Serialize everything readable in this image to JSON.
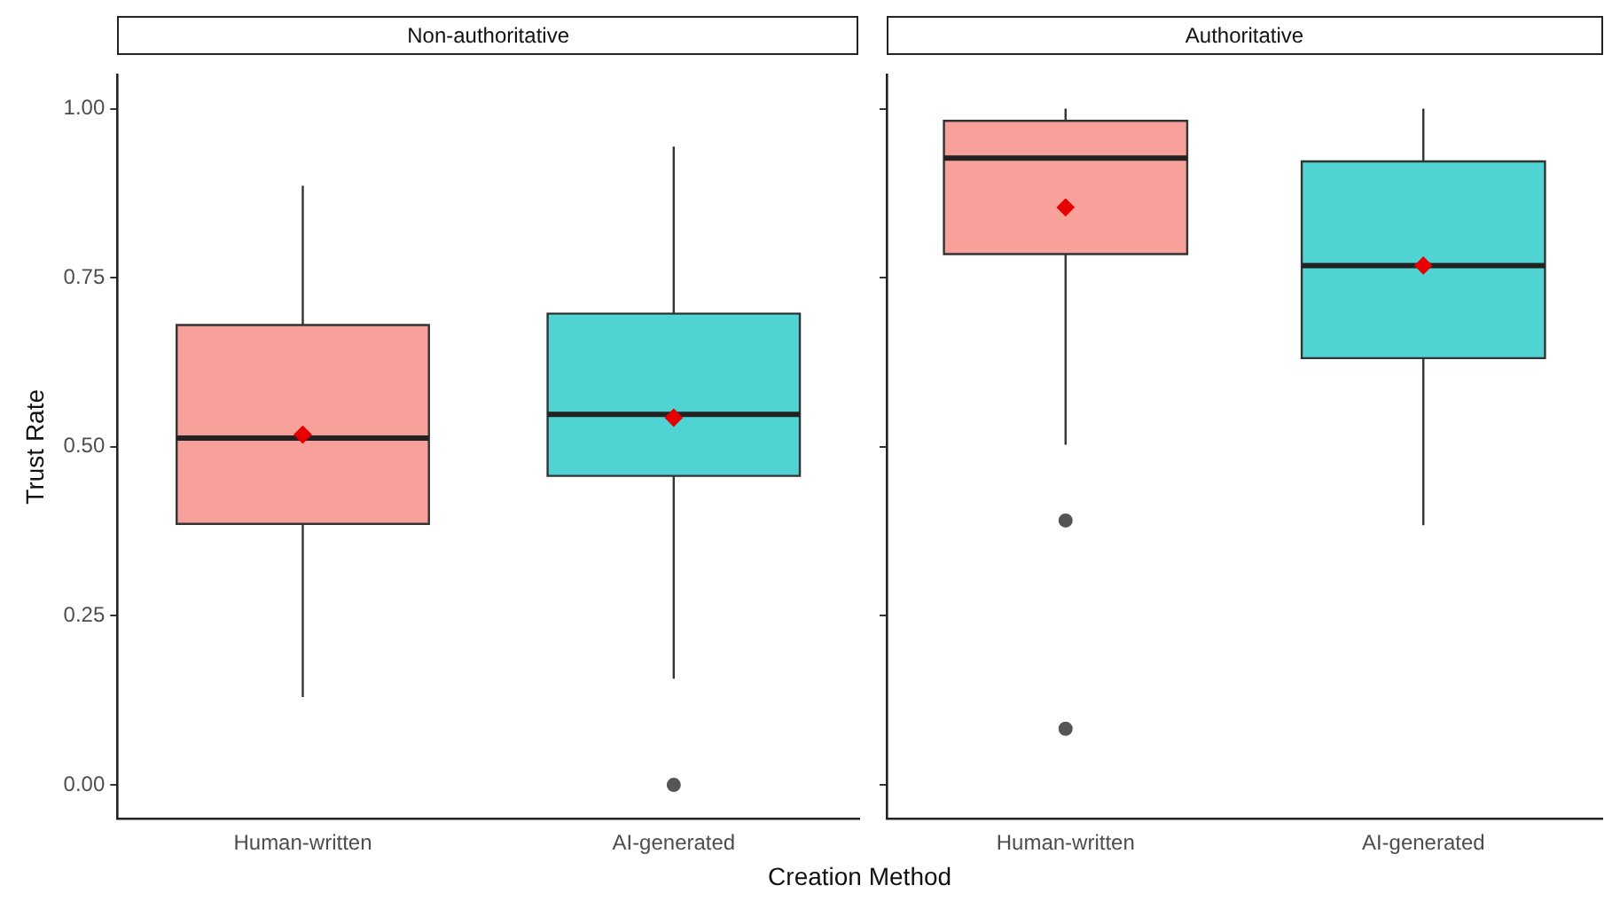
{
  "chart_data": [
    {
      "type": "box",
      "title": "Non-authoritative",
      "xlabel": "Creation Method",
      "ylabel": "Trust Rate",
      "categories": [
        "Human-written",
        "AI-generated"
      ],
      "colors": [
        "#f8a09a",
        "#4fd3d3"
      ],
      "boxes": [
        {
          "low": 0.13,
          "q1": 0.386,
          "median": 0.513,
          "q3": 0.68,
          "high": 0.886,
          "mean": 0.518
        },
        {
          "low": 0.157,
          "q1": 0.457,
          "median": 0.548,
          "q3": 0.697,
          "high": 0.944,
          "mean": 0.543,
          "outliers": [
            0
          ]
        }
      ],
      "ylim": [
        -0.05,
        1.05
      ],
      "yticks": [
        {
          "value": 0,
          "label": "0.00"
        },
        {
          "value": 0.25,
          "label": "0.25"
        },
        {
          "value": 0.5,
          "label": "0.50"
        },
        {
          "value": 0.75,
          "label": "0.75"
        },
        {
          "value": 1,
          "label": "1.00"
        }
      ],
      "grid": false,
      "legend": false
    },
    {
      "type": "box",
      "title": "Authoritative",
      "categories": [
        "Human-written",
        "AI-generated"
      ],
      "colors": [
        "#f8a09a",
        "#4fd3d3"
      ],
      "boxes": [
        {
          "low": 0.503,
          "q1": 0.785,
          "median": 0.927,
          "q3": 0.982,
          "high": 1.0,
          "mean": 0.854,
          "outliers": [
            0.391,
            0.083
          ]
        },
        {
          "low": 0.384,
          "q1": 0.631,
          "median": 0.768,
          "q3": 0.922,
          "high": 1.0,
          "mean": 0.768
        }
      ],
      "ylim": [
        -0.05,
        1.05
      ],
      "yticks": [
        {
          "value": 0,
          "label": null
        },
        {
          "value": 0.25,
          "label": null
        },
        {
          "value": 0.5,
          "label": null
        },
        {
          "value": 0.75,
          "label": null
        },
        {
          "value": 1,
          "label": null
        }
      ],
      "tick_labels": "x",
      "grid": false,
      "legend": false
    }
  ]
}
